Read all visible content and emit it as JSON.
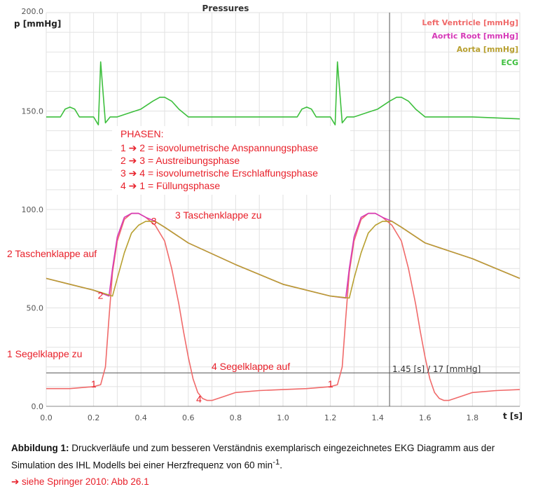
{
  "chart_data": {
    "type": "line",
    "title": "Pressures",
    "ylabel": "p [mmHg]",
    "xlabel": "t [s]",
    "xlim": [
      0,
      2.0
    ],
    "ylim": [
      0,
      200
    ],
    "x_ticks": [
      "0.0",
      "0.2",
      "0.4",
      "0.6",
      "0.8",
      "1.0",
      "1.2",
      "1.4",
      "1.6",
      "1.8"
    ],
    "y_ticks": [
      {
        "v": 0,
        "label": "0.0"
      },
      {
        "v": 50,
        "label": "50.0"
      },
      {
        "v": 100,
        "label": "100.0"
      },
      {
        "v": 150,
        "label": "150.0"
      },
      {
        "v": 200,
        "label": "200.0"
      }
    ],
    "grid": true,
    "legend_position": "top-right",
    "series": [
      {
        "name": "Left Ventricle [mmHg]",
        "color": "#f06a6a",
        "x": [
          0,
          0.1,
          0.2,
          0.23,
          0.25,
          0.265,
          0.28,
          0.3,
          0.33,
          0.36,
          0.39,
          0.42,
          0.46,
          0.5,
          0.53,
          0.56,
          0.58,
          0.6,
          0.62,
          0.64,
          0.66,
          0.68,
          0.7,
          0.75,
          0.8,
          0.9,
          1.0,
          1.1,
          1.2,
          1.23,
          1.25,
          1.265,
          1.28,
          1.3,
          1.33,
          1.36,
          1.39,
          1.42,
          1.46,
          1.5,
          1.53,
          1.56,
          1.58,
          1.6,
          1.62,
          1.64,
          1.66,
          1.68,
          1.7,
          1.75,
          1.8,
          1.9,
          2.0
        ],
        "y": [
          9,
          9,
          10,
          11,
          20,
          45,
          68,
          84,
          95,
          98,
          98,
          96,
          92,
          84,
          70,
          52,
          38,
          25,
          14,
          7,
          4,
          3,
          3,
          5,
          7,
          8,
          8.5,
          9,
          10,
          11,
          20,
          45,
          68,
          84,
          95,
          98,
          98,
          96,
          92,
          84,
          70,
          52,
          38,
          25,
          14,
          7,
          4,
          3,
          3,
          5,
          7,
          8,
          8.5
        ]
      },
      {
        "name": "Aortic Root [mmHg]",
        "color": "#d63ab8",
        "x": [
          0,
          0.1,
          0.2,
          0.265,
          0.28,
          0.3,
          0.33,
          0.36,
          0.39,
          0.42,
          0.46,
          0.5,
          0.6,
          0.8,
          1.0,
          1.2,
          1.265,
          1.28,
          1.3,
          1.33,
          1.36,
          1.39,
          1.42,
          1.46,
          1.5,
          1.6,
          1.8,
          2.0
        ],
        "y": [
          65,
          62,
          59,
          56,
          70,
          86,
          96,
          98,
          98,
          96,
          94,
          91,
          83,
          72,
          62,
          56,
          55,
          70,
          86,
          96,
          98,
          98,
          96,
          94,
          91,
          83,
          75,
          65
        ]
      },
      {
        "name": "Aorta [mmHg]",
        "color": "#b8a030",
        "x": [
          0,
          0.1,
          0.2,
          0.28,
          0.3,
          0.33,
          0.36,
          0.39,
          0.42,
          0.46,
          0.5,
          0.6,
          0.8,
          1.0,
          1.2,
          1.28,
          1.3,
          1.33,
          1.36,
          1.39,
          1.42,
          1.46,
          1.5,
          1.6,
          1.8,
          2.0
        ],
        "y": [
          65,
          62,
          59,
          56,
          65,
          78,
          88,
          92,
          94,
          94,
          91,
          83,
          72,
          62,
          56,
          55,
          65,
          78,
          88,
          92,
          94,
          94,
          91,
          83,
          75,
          65
        ]
      },
      {
        "name": "ECG",
        "color": "#3dbf3d",
        "x": [
          0,
          0.06,
          0.08,
          0.1,
          0.12,
          0.14,
          0.2,
          0.22,
          0.23,
          0.25,
          0.27,
          0.29,
          0.3,
          0.35,
          0.4,
          0.45,
          0.48,
          0.5,
          0.53,
          0.56,
          0.6,
          0.8,
          1.0,
          1.06,
          1.08,
          1.1,
          1.12,
          1.14,
          1.2,
          1.22,
          1.23,
          1.25,
          1.27,
          1.29,
          1.3,
          1.35,
          1.4,
          1.45,
          1.48,
          1.5,
          1.53,
          1.56,
          1.6,
          1.8,
          2.0
        ],
        "y": [
          147,
          147,
          151,
          152,
          151,
          147,
          147,
          143,
          175,
          144,
          147,
          147,
          147,
          149,
          151,
          155,
          157,
          157,
          155,
          151,
          147,
          147,
          147,
          147,
          151,
          152,
          151,
          147,
          147,
          143,
          175,
          144,
          147,
          147,
          147,
          149,
          151,
          155,
          157,
          157,
          155,
          151,
          147,
          147,
          146
        ]
      }
    ],
    "annotations": {
      "left_labels": [
        "2 Taschenklappe auf",
        "1 Segelklappe zu"
      ],
      "taschenklappe_zu": "3 Taschenklappe zu",
      "segelklappe_auf": "4 Segelklappe auf",
      "points": [
        {
          "label": "1",
          "x": 0.23,
          "y": 11
        },
        {
          "label": "2",
          "x": 0.265,
          "y": 56
        },
        {
          "label": "3",
          "x": 0.49,
          "y": 93
        },
        {
          "label": "4",
          "x": 0.645,
          "y": 7
        },
        {
          "label": "1",
          "x": 1.23,
          "y": 11
        }
      ],
      "cursor": {
        "x": 1.45,
        "y": 17,
        "label": "1.45 [s] / 17 [mmHg]"
      }
    },
    "phases": {
      "title": "PHASEN:",
      "items": [
        "1 ➔ 2 = isovolumetrische Anspannungsphase",
        "2 ➔ 3 = Austreibungsphase",
        "3 ➔ 4 = isovolumetrische Erschlaffungsphase",
        "4 ➔ 1 = Füllungsphase"
      ]
    }
  },
  "caption": {
    "bold": "Abbildung 1:",
    "text": " Druckverläufe und zum besseren Verständnis exemplarisch eingezeichnetes EKG Diagramm aus der Simulation des IHL Modells bei einer Herzfrequenz von 60 min",
    "sup": "-1",
    "end": "."
  },
  "reference": "➔ siehe Springer 2010: Abb 26.1"
}
